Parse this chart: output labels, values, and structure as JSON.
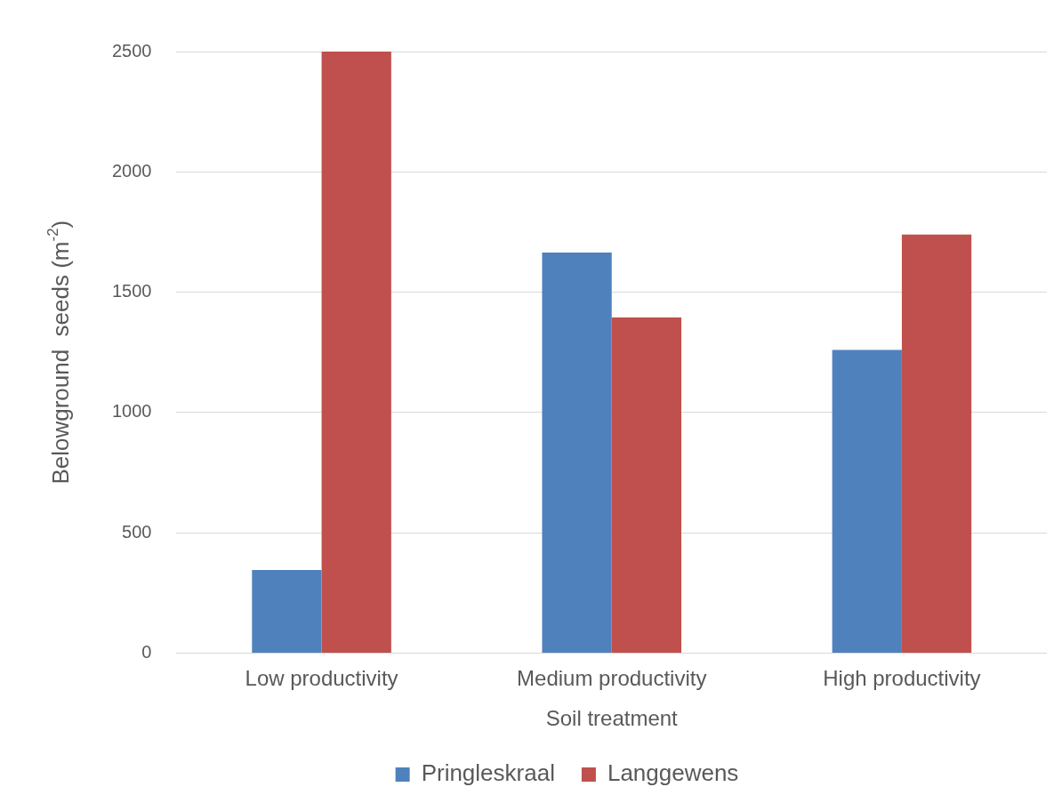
{
  "chart_data": {
    "type": "bar",
    "xlabel": "Soil treatment",
    "ylabel": "Belowground  seeds (m$^{-2}$)",
    "categories": [
      "Low productivity",
      "Medium productivity",
      "High productivity"
    ],
    "series": [
      {
        "name": "Pringleskraal",
        "color": "#4f81bd",
        "values": [
          345,
          1665,
          1260
        ]
      },
      {
        "name": "Langgewens",
        "color": "#c0504d",
        "values": [
          2500,
          1395,
          1740
        ]
      }
    ],
    "ylim": [
      0,
      2500
    ],
    "yticks": [
      0,
      500,
      1000,
      1500,
      2000,
      2500
    ],
    "grid": "y",
    "legend": "bottom"
  }
}
